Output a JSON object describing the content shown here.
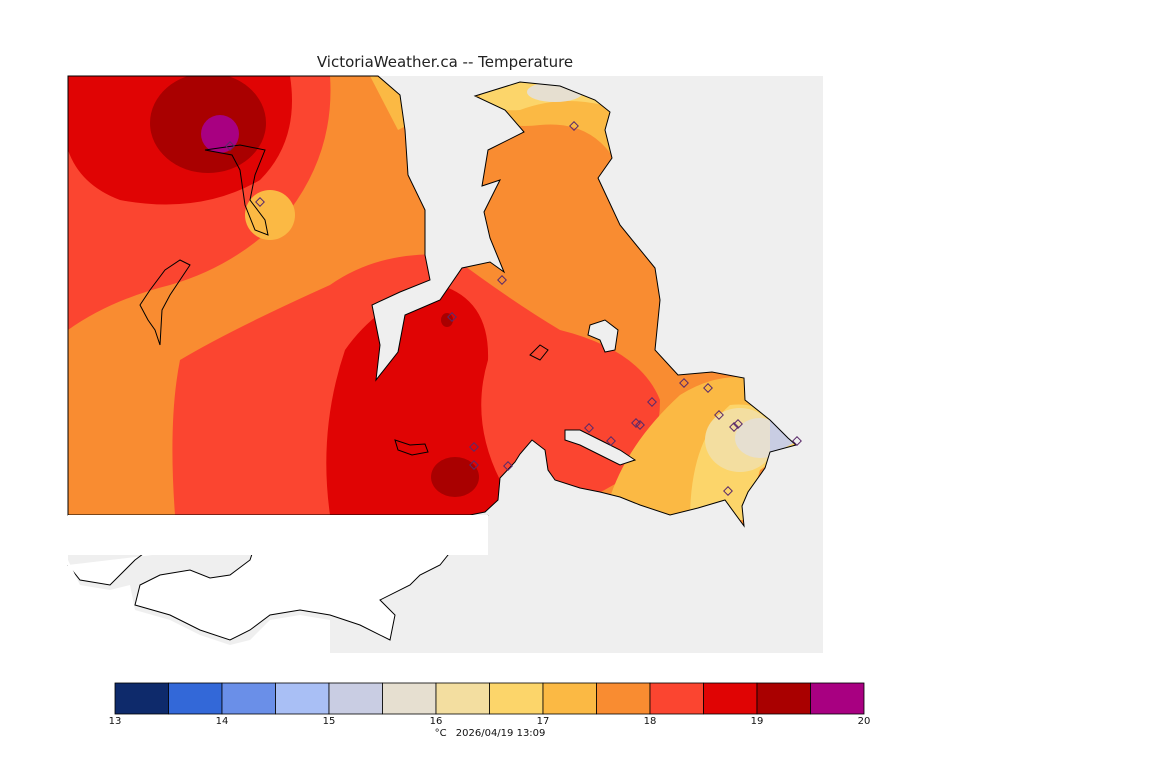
{
  "title": "VictoriaWeather.ca -- Temperature",
  "legend": {
    "colors": [
      "#0e2a6b",
      "#3368d8",
      "#6a8fe8",
      "#a9bff5",
      "#c9cde3",
      "#e6dfd0",
      "#f3dea0",
      "#fcd56a",
      "#fbb944",
      "#f98c31",
      "#fb4530",
      "#e00404",
      "#a90000",
      "#a80081"
    ],
    "ticks": [
      "13",
      "14",
      "15",
      "16",
      "17",
      "18",
      "19",
      "20"
    ],
    "unit": "°C",
    "timestamp": "2026/04/19 13:09"
  },
  "stations_count": 20
}
